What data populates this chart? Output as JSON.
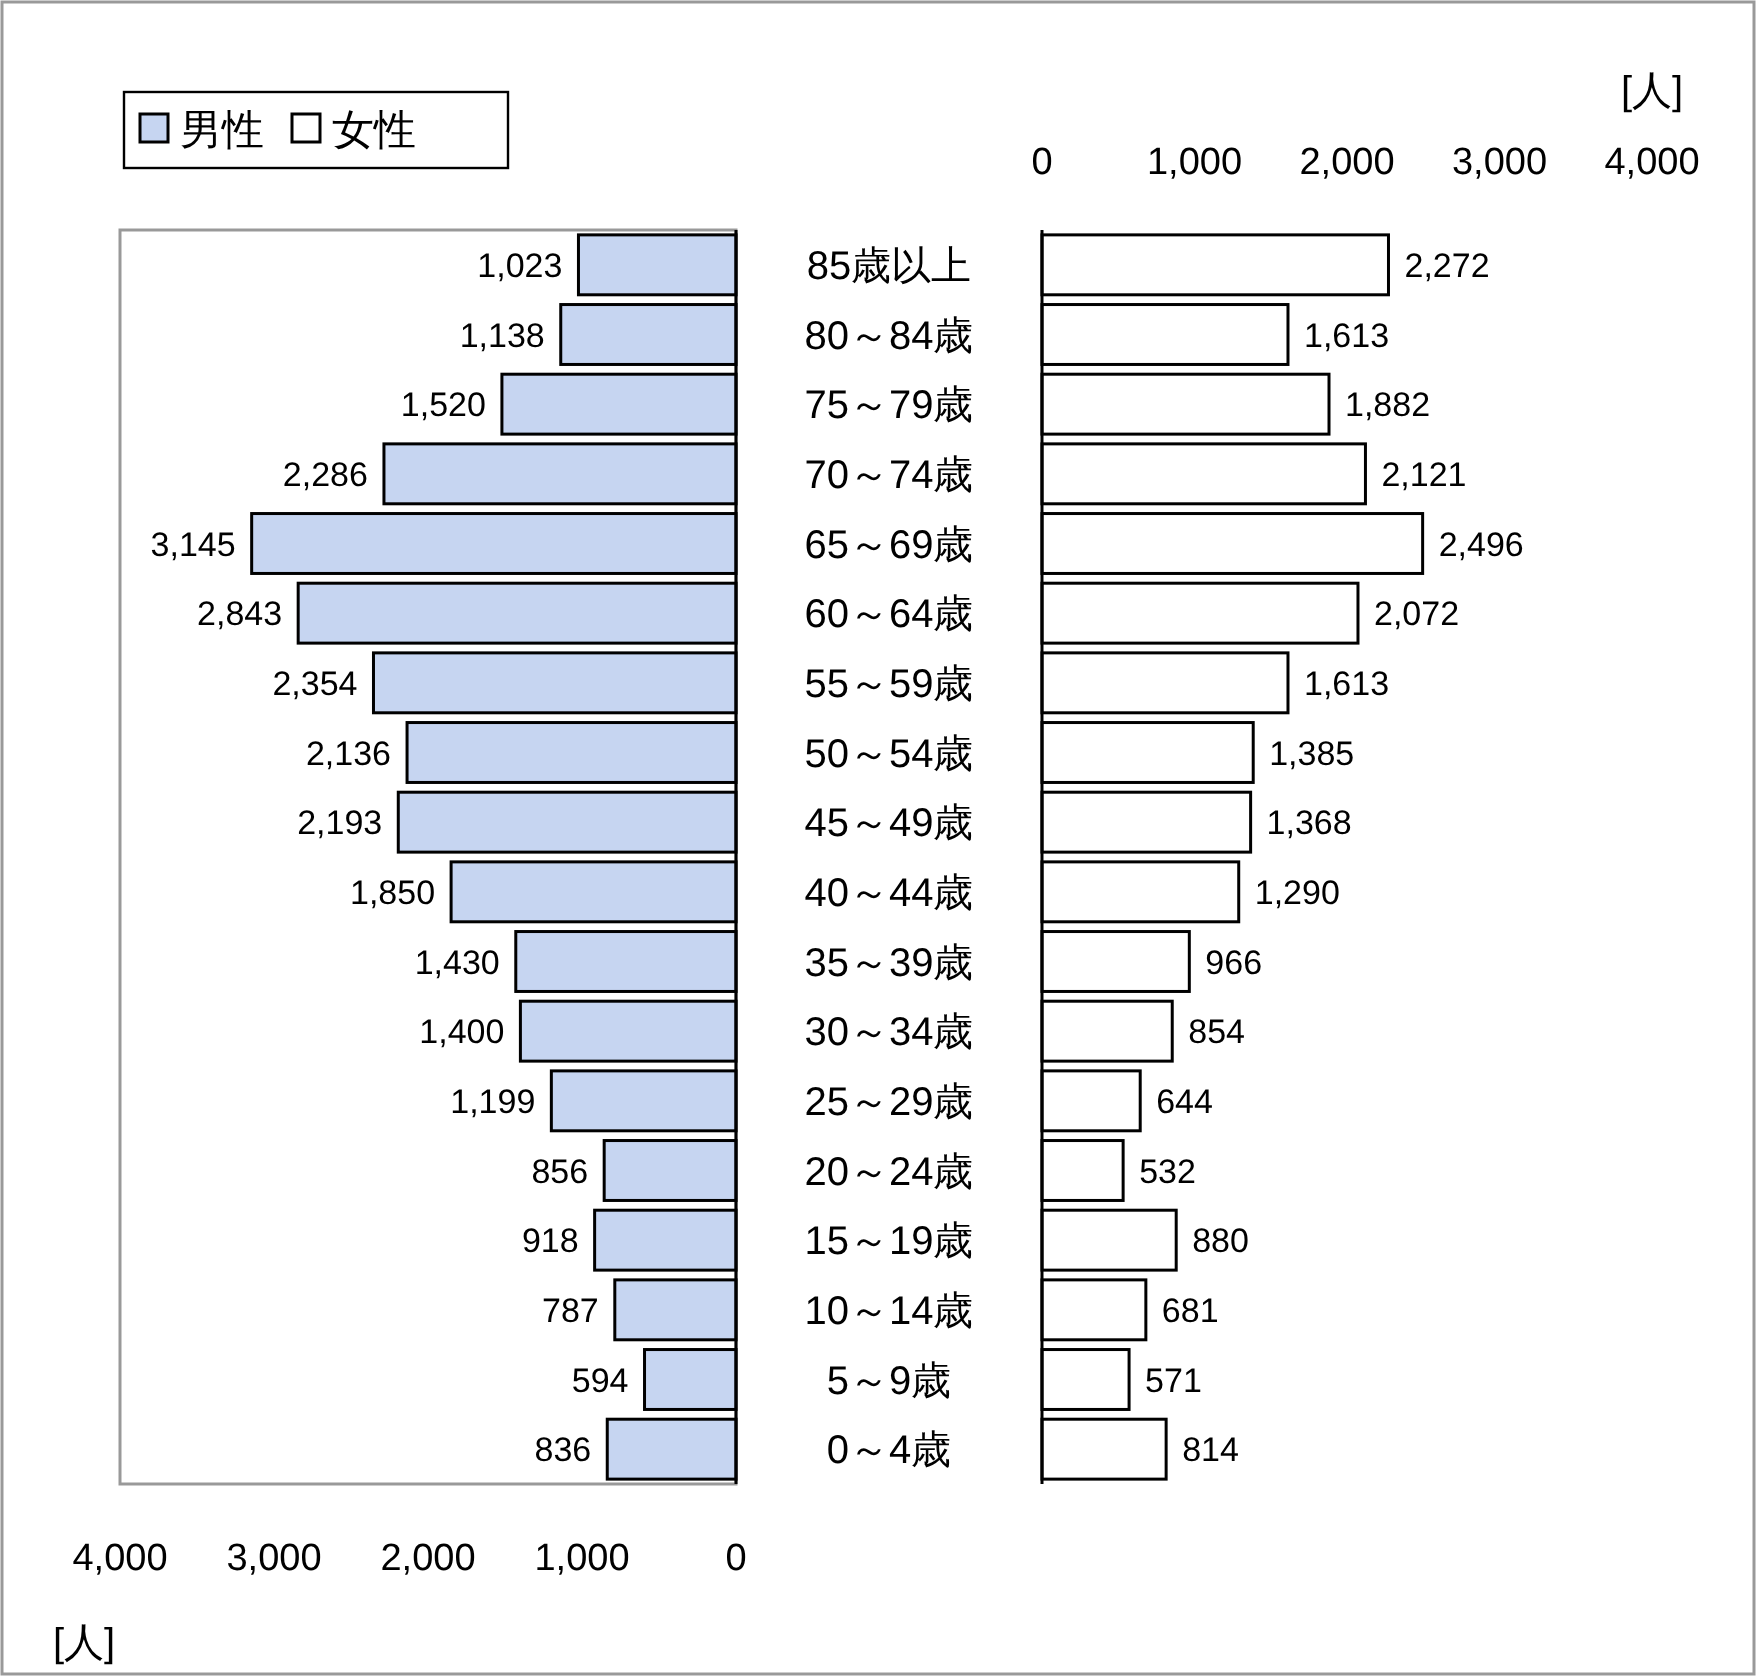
{
  "chart_data": [
    {
      "type": "bar",
      "orientation": "horizontal",
      "legend": "top left",
      "xlabel": "[人]",
      "categories": [
        "85歳以上",
        "80～84歳",
        "75～79歳",
        "70～74歳",
        "65～69歳",
        "60～64歳",
        "55～59歳",
        "50～54歳",
        "45～49歳",
        "40～44歳",
        "35～39歳",
        "30～34歳",
        "25～29歳",
        "20～24歳",
        "15～19歳",
        "10～14歳",
        "5～9歳",
        "0～4歳"
      ],
      "xlim": [
        4000,
        0
      ],
      "xticks": [
        {
          "value": 4000,
          "label": "4,000"
        },
        {
          "value": 3000,
          "label": "3,000"
        },
        {
          "value": 2000,
          "label": "2,000"
        },
        {
          "value": 1000,
          "label": "1,000"
        },
        0
      ],
      "series": [
        {
          "name": "男性",
          "color": "#c6d5f1",
          "values": [
            1023,
            1138,
            1520,
            2286,
            3145,
            2843,
            2354,
            2136,
            2193,
            1850,
            1430,
            1400,
            1199,
            856,
            918,
            787,
            594,
            836
          ],
          "value_labels": [
            "1,023",
            "1,138",
            "1,520",
            "2,286",
            "3,145",
            "2,843",
            "2,354",
            "2,136",
            "2,193",
            "1,850",
            "1,430",
            "1,400",
            "1,199",
            "856",
            "918",
            "787",
            "594",
            "836"
          ]
        }
      ]
    },
    {
      "type": "bar",
      "orientation": "horizontal",
      "legend": "top left",
      "xlabel": "[人]",
      "tick_labels": "x",
      "xlim": [
        0,
        4000
      ],
      "xticks": [
        0,
        {
          "value": 1000,
          "label": "1,000"
        },
        {
          "value": 2000,
          "label": "2,000"
        },
        {
          "value": 3000,
          "label": "3,000"
        },
        {
          "value": 4000,
          "label": "4,000"
        }
      ],
      "series": [
        {
          "name": "女性",
          "color": "#ffffff",
          "values": [
            2272,
            1613,
            1882,
            2121,
            2496,
            2072,
            1613,
            1385,
            1368,
            1290,
            966,
            854,
            644,
            532,
            880,
            681,
            571,
            814
          ],
          "value_labels": [
            "2,272",
            "1,613",
            "1,882",
            "2,121",
            "2,496",
            "2,072",
            "1,613",
            "1,385",
            "1,368",
            "1,290",
            "966",
            "854",
            "644",
            "532",
            "880",
            "681",
            "571",
            "814"
          ]
        }
      ]
    }
  ]
}
